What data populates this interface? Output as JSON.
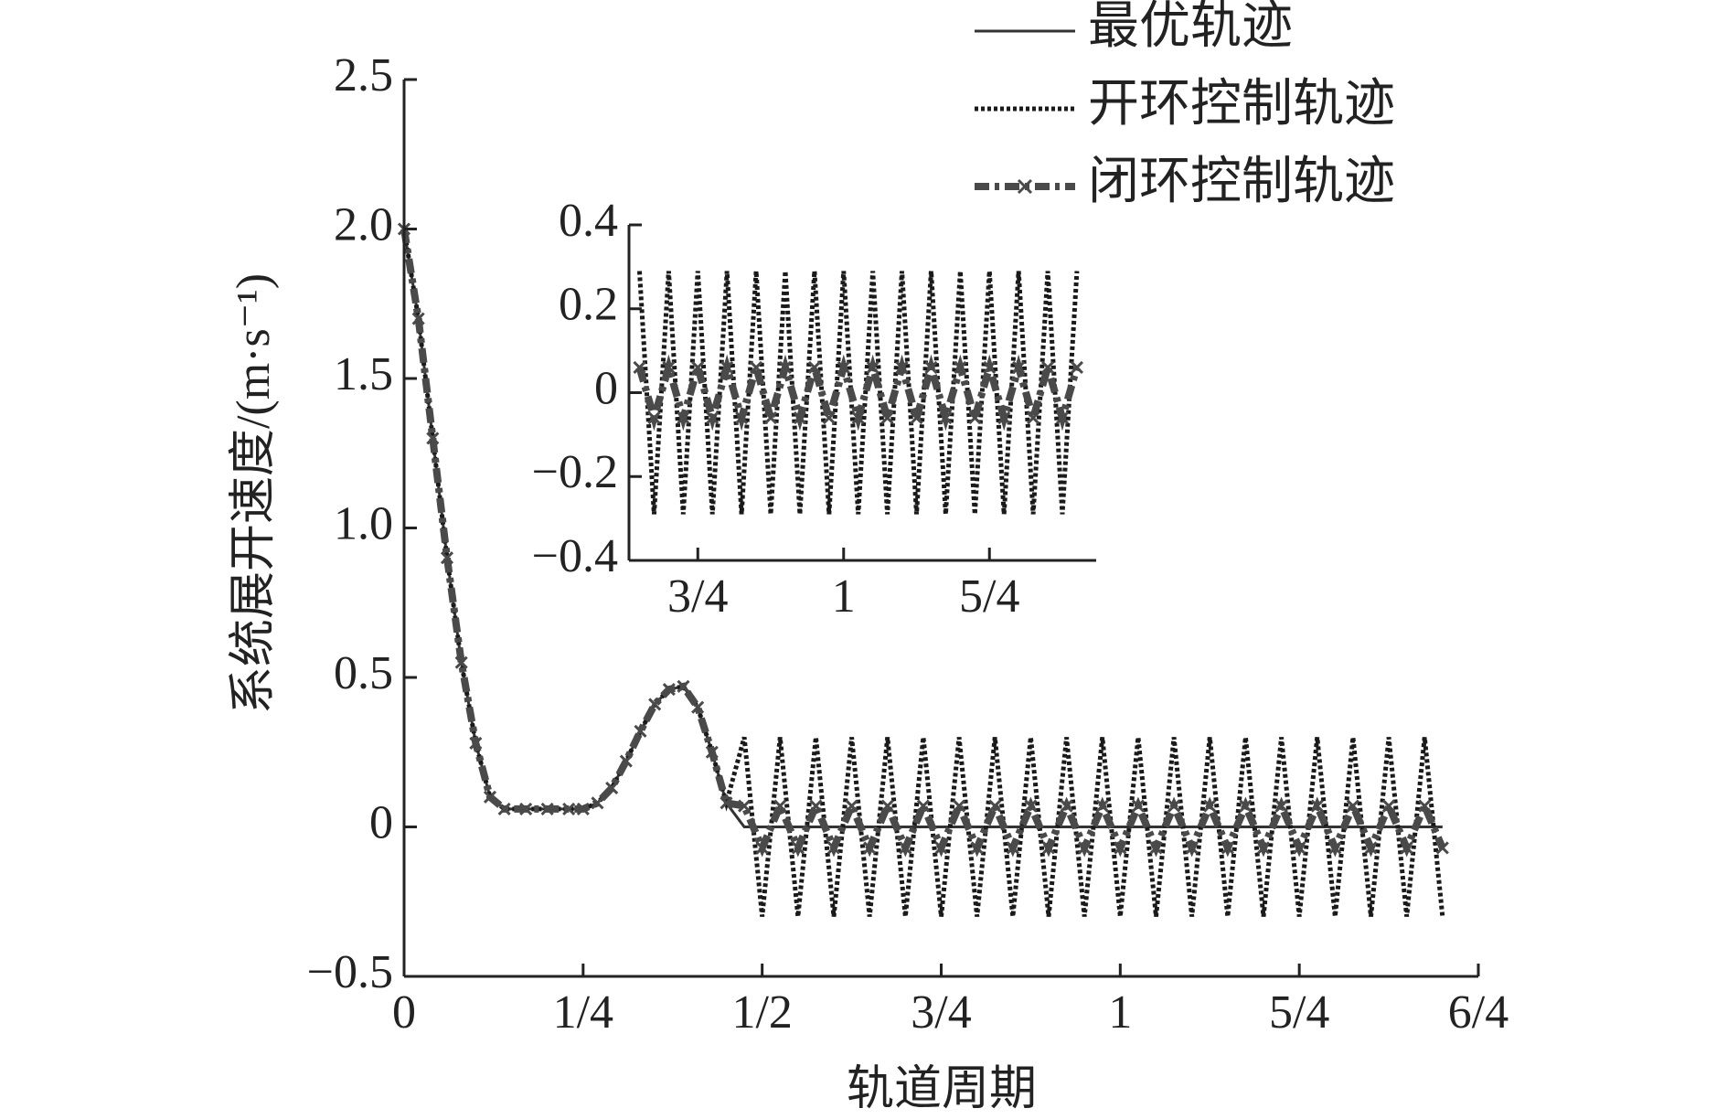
{
  "chart_data": [
    {
      "type": "line",
      "xlabel": "轨道周期",
      "ylabel": "系统展开速度/(m·s⁻¹)",
      "x": [
        0,
        0.02,
        0.04,
        0.06,
        0.08,
        0.1,
        0.12,
        0.14,
        0.17,
        0.2,
        0.23,
        0.25,
        0.27,
        0.29,
        0.31,
        0.33,
        0.35,
        0.37,
        0.39,
        0.41,
        0.43,
        0.45,
        0.475,
        0.5,
        0.525,
        0.55,
        0.575,
        0.6,
        0.625,
        0.65,
        0.675,
        0.7,
        0.725,
        0.75,
        0.775,
        0.8,
        0.825,
        0.85,
        0.875,
        0.9,
        0.925,
        0.95,
        0.975,
        1,
        1.025,
        1.05,
        1.075,
        1.1,
        1.125,
        1.15,
        1.175,
        1.2,
        1.225,
        1.25,
        1.275,
        1.3,
        1.325,
        1.35,
        1.375,
        1.4,
        1.425,
        1.45
      ],
      "series": [
        {
          "name": "最优轨迹",
          "color": "#333333",
          "dash": "solid",
          "values": [
            2.0,
            1.7,
            1.3,
            0.9,
            0.55,
            0.28,
            0.1,
            0.06,
            0.06,
            0.06,
            0.06,
            0.06,
            0.08,
            0.13,
            0.22,
            0.32,
            0.41,
            0.46,
            0.47,
            0.4,
            0.25,
            0.08,
            0,
            0,
            0,
            0,
            0,
            0,
            0,
            0,
            0,
            0,
            0,
            0,
            0,
            0,
            0,
            0,
            0,
            0,
            0,
            0,
            0,
            0,
            0,
            0,
            0,
            0,
            0,
            0,
            0,
            0,
            0,
            0,
            0,
            0,
            0,
            0,
            0,
            0,
            0,
            0
          ]
        },
        {
          "name": "开环控制轨迹",
          "color": "#1a1a1a",
          "dash": "dotted",
          "values": [
            2.0,
            1.7,
            1.3,
            0.9,
            0.55,
            0.28,
            0.1,
            0.06,
            0.06,
            0.06,
            0.06,
            0.06,
            0.08,
            0.13,
            0.22,
            0.32,
            0.41,
            0.46,
            0.47,
            0.4,
            0.25,
            0.08,
            0.3,
            -0.3,
            0.3,
            -0.3,
            0.3,
            -0.3,
            0.3,
            -0.3,
            0.3,
            -0.3,
            0.3,
            -0.3,
            0.3,
            -0.3,
            0.3,
            -0.3,
            0.3,
            -0.3,
            0.3,
            -0.3,
            0.3,
            -0.3,
            0.3,
            -0.3,
            0.3,
            -0.3,
            0.3,
            -0.3,
            0.3,
            -0.3,
            0.3,
            -0.3,
            0.3,
            -0.3,
            0.3,
            -0.3,
            0.3,
            -0.3,
            0.3,
            -0.3
          ]
        },
        {
          "name": "闭环控制轨迹",
          "color": "#4a4a4a",
          "dash": "dashdot",
          "marker": "x",
          "values": [
            2.0,
            1.7,
            1.3,
            0.9,
            0.55,
            0.28,
            0.1,
            0.06,
            0.06,
            0.06,
            0.06,
            0.06,
            0.08,
            0.13,
            0.22,
            0.32,
            0.41,
            0.46,
            0.47,
            0.4,
            0.25,
            0.08,
            0.07,
            -0.07,
            0.07,
            -0.07,
            0.07,
            -0.07,
            0.07,
            -0.07,
            0.07,
            -0.07,
            0.07,
            -0.07,
            0.07,
            -0.07,
            0.07,
            -0.07,
            0.07,
            -0.07,
            0.07,
            -0.07,
            0.07,
            -0.07,
            0.07,
            -0.07,
            0.07,
            -0.07,
            0.07,
            -0.07,
            0.07,
            -0.07,
            0.07,
            -0.07,
            0.07,
            -0.07,
            0.07,
            -0.07,
            0.07,
            -0.07,
            0.07,
            -0.07
          ]
        }
      ],
      "xlim": [
        0,
        1.5
      ],
      "xticks": [
        0,
        {
          "value": 0.25,
          "label": "1/4"
        },
        {
          "value": 0.5,
          "label": "1/2"
        },
        {
          "value": 0.75,
          "label": "3/4"
        },
        1,
        {
          "value": 1.25,
          "label": "5/4"
        },
        {
          "value": 1.5,
          "label": "6/4"
        }
      ],
      "ylim": [
        -0.5,
        2.5
      ],
      "yticks": [
        {
          "value": -0.5,
          "label": "−0.5"
        },
        0,
        0.5,
        {
          "value": 1.0,
          "label": "1.0"
        },
        1.5,
        {
          "value": 2.0,
          "label": "2.0"
        },
        2.5
      ],
      "legend": "upper right"
    },
    {
      "type": "line",
      "x": [
        0.65,
        0.675,
        0.7,
        0.725,
        0.75,
        0.775,
        0.8,
        0.825,
        0.85,
        0.875,
        0.9,
        0.925,
        0.95,
        0.975,
        1,
        1.025,
        1.05,
        1.075,
        1.1,
        1.125,
        1.15,
        1.175,
        1.2,
        1.225,
        1.25,
        1.275,
        1.3,
        1.325,
        1.35,
        1.375,
        1.4
      ],
      "series": [
        {
          "color": "#1a1a1a",
          "dash": "dotted",
          "values": [
            0.29,
            -0.29,
            0.29,
            -0.29,
            0.29,
            -0.29,
            0.29,
            -0.29,
            0.29,
            -0.29,
            0.29,
            -0.29,
            0.29,
            -0.29,
            0.29,
            -0.29,
            0.29,
            -0.29,
            0.29,
            -0.29,
            0.29,
            -0.29,
            0.29,
            -0.29,
            0.29,
            -0.29,
            0.29,
            -0.29,
            0.29,
            -0.29,
            0.29
          ]
        },
        {
          "color": "#4a4a4a",
          "dash": "dashdot",
          "marker": "x",
          "values": [
            0.06,
            -0.06,
            0.06,
            -0.06,
            0.06,
            -0.06,
            0.06,
            -0.06,
            0.06,
            -0.06,
            0.06,
            -0.06,
            0.06,
            -0.06,
            0.06,
            -0.06,
            0.06,
            -0.06,
            0.06,
            -0.06,
            0.06,
            -0.06,
            0.06,
            -0.06,
            0.06,
            -0.06,
            0.06,
            -0.06,
            0.06,
            -0.06,
            0.06
          ]
        }
      ],
      "xlim": [
        0.632,
        1.433
      ],
      "xticks": [
        {
          "value": 0.75,
          "label": "3/4"
        },
        1,
        {
          "value": 1.25,
          "label": "5/4"
        }
      ],
      "ylim": [
        -0.4,
        0.4
      ],
      "yticks": [
        {
          "value": -0.4,
          "label": "−0.4"
        },
        {
          "value": -0.2,
          "label": "−0.2"
        },
        0,
        0.2,
        0.4
      ]
    }
  ]
}
